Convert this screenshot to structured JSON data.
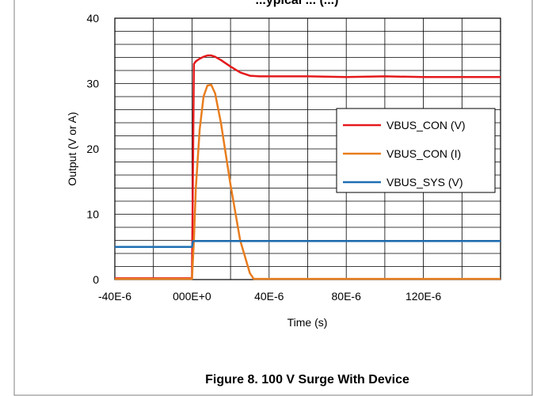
{
  "title_fragment": "...ypical ... (...)",
  "chart_data": {
    "type": "line",
    "xlabel": "Time (s)",
    "ylabel": "Output (V or A)",
    "xlim": [
      -4e-05,
      0.00016
    ],
    "ylim": [
      0,
      40
    ],
    "x_ticks": [
      -4e-05,
      0.0,
      4e-05,
      8e-05,
      0.00012
    ],
    "x_tick_labels": [
      "-40E-6",
      "000E+0",
      "40E-6",
      "80E-6",
      "120E-6"
    ],
    "y_ticks": [
      0,
      10,
      20,
      30,
      40
    ],
    "y_tick_labels": [
      "0",
      "10",
      "20",
      "30",
      "40"
    ],
    "grid": true,
    "legend_position": "right",
    "series": [
      {
        "name": "VBUS_CON (V)",
        "color": "#e41a1c",
        "x": [
          -4e-05,
          0.0,
          1e-06,
          2e-06,
          4e-06,
          6e-06,
          8e-06,
          1e-05,
          1.2e-05,
          1.5e-05,
          2e-05,
          2.5e-05,
          3e-05,
          3.5e-05,
          4e-05,
          6e-05,
          8e-05,
          0.0001,
          0.00012,
          0.00014,
          0.00016
        ],
        "y": [
          0.2,
          0.2,
          33.0,
          33.4,
          33.8,
          34.1,
          34.3,
          34.3,
          34.1,
          33.6,
          32.6,
          31.7,
          31.2,
          31.1,
          31.1,
          31.1,
          31.0,
          31.1,
          31.0,
          31.0,
          31.0
        ]
      },
      {
        "name": "VBUS_CON (I)",
        "color": "#e87d1e",
        "x": [
          -4e-05,
          0.0,
          1e-06,
          2e-06,
          4e-06,
          6e-06,
          8e-06,
          1e-05,
          1.2e-05,
          1.5e-05,
          2e-05,
          2.5e-05,
          3e-05,
          3.2e-05,
          4e-05,
          8e-05,
          0.00012,
          0.00016
        ],
        "y": [
          0.1,
          0.1,
          6.0,
          14.0,
          23.0,
          28.0,
          29.7,
          29.8,
          28.5,
          24.0,
          14.5,
          6.0,
          1.0,
          0.1,
          0.1,
          0.1,
          0.1,
          0.1
        ]
      },
      {
        "name": "VBUS_SYS (V)",
        "color": "#1f6fb4",
        "x": [
          -4e-05,
          0.0,
          5e-07,
          4e-05,
          8e-05,
          0.00012,
          0.00016
        ],
        "y": [
          5.0,
          5.0,
          5.9,
          5.9,
          5.9,
          5.9,
          5.9
        ]
      }
    ]
  },
  "caption": "Figure 8. 100 V Surge With Device"
}
